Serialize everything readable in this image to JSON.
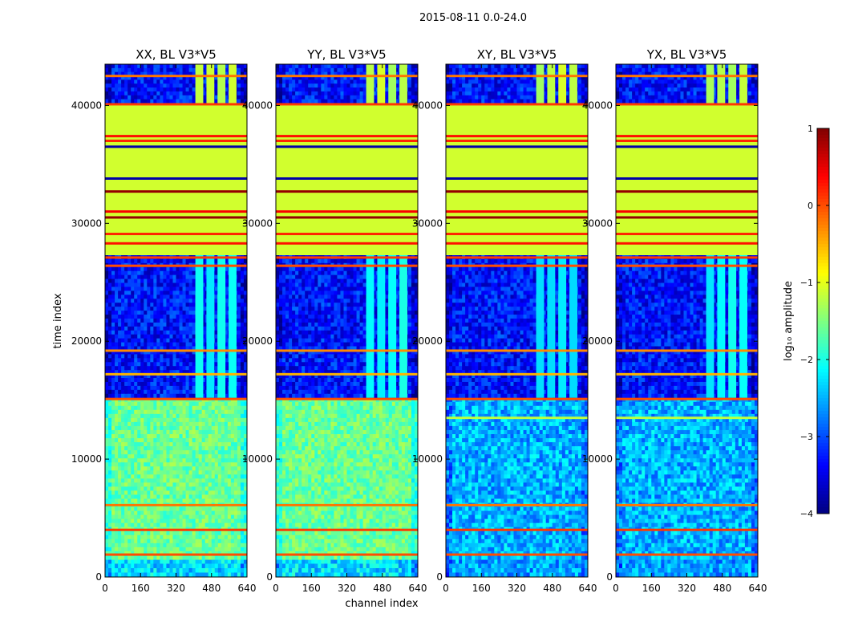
{
  "figure_title": "2015-08-11 0.0-24.0",
  "chart_data": {
    "type": "heatmap",
    "title": "2015-08-11 0.0-24.0",
    "xlabel": "channel index",
    "ylabel": "time index",
    "xlim": [
      0,
      640
    ],
    "ylim": [
      0,
      43500
    ],
    "x_ticks": [
      0,
      160,
      320,
      480,
      640
    ],
    "y_ticks": [
      0,
      10000,
      20000,
      30000,
      40000
    ],
    "colorbar": {
      "label": "log₁₀ amplitude",
      "range": [
        -4,
        1
      ],
      "ticks": [
        1,
        0,
        -1,
        -2,
        -3,
        -4
      ],
      "tick_labels": [
        "1",
        "0",
        "−1",
        "−2",
        "−3",
        "−4"
      ],
      "colormap": "jet"
    },
    "panels": [
      {
        "title": "XX, BL V3*V5",
        "kind": "parallel",
        "bands": [
          {
            "from": 0,
            "to": 1500,
            "level": -2.3,
            "noise": 0.45
          },
          {
            "from": 1500,
            "to": 15200,
            "level": -1.6,
            "noise": 0.35
          },
          {
            "from": 15200,
            "to": 27300,
            "level": -3.3,
            "noise": 0.45
          },
          {
            "from": 27300,
            "to": 40200,
            "level": -1.1,
            "noise": 0
          },
          {
            "from": 40200,
            "to": 43500,
            "level": -3.3,
            "noise": 0.45
          }
        ],
        "rfi_blocks": [
          {
            "x0": 400,
            "x1": 600,
            "y0": 19800,
            "y1": 24000,
            "level": -1.4
          },
          {
            "x0": 400,
            "x1": 600,
            "y0": 15200,
            "y1": 27300,
            "level": -2.1
          },
          {
            "x0": 400,
            "x1": 600,
            "y0": 40200,
            "y1": 43500,
            "level": -1.2
          }
        ],
        "lines": [
          {
            "t": 1900,
            "level": 0.0
          },
          {
            "t": 4000,
            "level": 0.1
          },
          {
            "t": 6100,
            "level": -0.2
          },
          {
            "t": 15100,
            "level": 0.0
          },
          {
            "t": 17200,
            "level": -0.5
          },
          {
            "t": 19200,
            "level": -0.3
          },
          {
            "t": 26400,
            "level": 0.0
          },
          {
            "t": 27100,
            "level": 0.1
          },
          {
            "t": 28300,
            "level": 0.3
          },
          {
            "t": 29100,
            "level": 0.2
          },
          {
            "t": 30500,
            "level": 0.9
          },
          {
            "t": 31000,
            "level": 0.4
          },
          {
            "t": 32700,
            "level": 0.9
          },
          {
            "t": 33800,
            "level": -3.8
          },
          {
            "t": 36500,
            "level": -3.8
          },
          {
            "t": 37000,
            "level": 0.2
          },
          {
            "t": 37400,
            "level": 0.3
          },
          {
            "t": 40100,
            "level": 0.1
          },
          {
            "t": 42500,
            "level": -0.2
          }
        ]
      },
      {
        "title": "YY, BL V3*V5",
        "kind": "parallel",
        "bands": [
          {
            "from": 0,
            "to": 1500,
            "level": -2.3,
            "noise": 0.45
          },
          {
            "from": 1500,
            "to": 15200,
            "level": -1.6,
            "noise": 0.35
          },
          {
            "from": 15200,
            "to": 27300,
            "level": -3.3,
            "noise": 0.45
          },
          {
            "from": 27300,
            "to": 40200,
            "level": -1.1,
            "noise": 0
          },
          {
            "from": 40200,
            "to": 43500,
            "level": -3.3,
            "noise": 0.45
          }
        ],
        "rfi_blocks": [
          {
            "x0": 400,
            "x1": 600,
            "y0": 19800,
            "y1": 24000,
            "level": -1.5
          },
          {
            "x0": 400,
            "x1": 600,
            "y0": 15200,
            "y1": 27300,
            "level": -2.1
          },
          {
            "x0": 400,
            "x1": 600,
            "y0": 40200,
            "y1": 43500,
            "level": -1.2
          }
        ],
        "lines": [
          {
            "t": 1900,
            "level": 0.0
          },
          {
            "t": 4000,
            "level": 0.1
          },
          {
            "t": 6100,
            "level": -0.2
          },
          {
            "t": 15100,
            "level": 0.0
          },
          {
            "t": 17200,
            "level": -0.5
          },
          {
            "t": 19200,
            "level": -0.3
          },
          {
            "t": 26400,
            "level": 0.0
          },
          {
            "t": 27100,
            "level": 0.1
          },
          {
            "t": 28300,
            "level": 0.3
          },
          {
            "t": 29100,
            "level": 0.2
          },
          {
            "t": 30500,
            "level": 0.9
          },
          {
            "t": 31000,
            "level": 0.4
          },
          {
            "t": 32700,
            "level": 0.9
          },
          {
            "t": 33800,
            "level": -3.8
          },
          {
            "t": 36500,
            "level": -3.8
          },
          {
            "t": 37000,
            "level": 0.2
          },
          {
            "t": 37400,
            "level": 0.3
          },
          {
            "t": 40100,
            "level": 0.1
          },
          {
            "t": 42500,
            "level": -0.2
          }
        ]
      },
      {
        "title": "XY, BL V3*V5",
        "kind": "cross",
        "bands": [
          {
            "from": 0,
            "to": 1500,
            "level": -2.6,
            "noise": 0.45
          },
          {
            "from": 1500,
            "to": 15200,
            "level": -2.5,
            "noise": 0.45
          },
          {
            "from": 15200,
            "to": 27300,
            "level": -3.3,
            "noise": 0.45
          },
          {
            "from": 27300,
            "to": 40200,
            "level": -1.1,
            "noise": 0
          },
          {
            "from": 40200,
            "to": 43500,
            "level": -3.3,
            "noise": 0.45
          }
        ],
        "rfi_blocks": [
          {
            "x0": 400,
            "x1": 600,
            "y0": 19800,
            "y1": 24000,
            "level": -1.5
          },
          {
            "x0": 400,
            "x1": 600,
            "y0": 15200,
            "y1": 27300,
            "level": -2.2
          },
          {
            "x0": 400,
            "x1": 600,
            "y0": 40200,
            "y1": 43500,
            "level": -1.2
          }
        ],
        "lines": [
          {
            "t": 1900,
            "level": 0.0
          },
          {
            "t": 4000,
            "level": 0.1
          },
          {
            "t": 6100,
            "level": -0.2
          },
          {
            "t": 13500,
            "level": -1.2
          },
          {
            "t": 15100,
            "level": 0.0
          },
          {
            "t": 17200,
            "level": -0.5
          },
          {
            "t": 19200,
            "level": -0.3
          },
          {
            "t": 26400,
            "level": 0.0
          },
          {
            "t": 27100,
            "level": 0.1
          },
          {
            "t": 28300,
            "level": 0.3
          },
          {
            "t": 29100,
            "level": 0.2
          },
          {
            "t": 30500,
            "level": 0.9
          },
          {
            "t": 31000,
            "level": 0.4
          },
          {
            "t": 32700,
            "level": 0.9
          },
          {
            "t": 33800,
            "level": -3.8
          },
          {
            "t": 36500,
            "level": -3.8
          },
          {
            "t": 37000,
            "level": 0.2
          },
          {
            "t": 37400,
            "level": 0.3
          },
          {
            "t": 40100,
            "level": 0.1
          },
          {
            "t": 42500,
            "level": -0.2
          }
        ]
      },
      {
        "title": "YX, BL V3*V5",
        "kind": "cross",
        "bands": [
          {
            "from": 0,
            "to": 1500,
            "level": -2.6,
            "noise": 0.45
          },
          {
            "from": 1500,
            "to": 15200,
            "level": -2.5,
            "noise": 0.45
          },
          {
            "from": 15200,
            "to": 27300,
            "level": -3.3,
            "noise": 0.45
          },
          {
            "from": 27300,
            "to": 40200,
            "level": -1.1,
            "noise": 0
          },
          {
            "from": 40200,
            "to": 43500,
            "level": -3.3,
            "noise": 0.45
          }
        ],
        "rfi_blocks": [
          {
            "x0": 400,
            "x1": 600,
            "y0": 19800,
            "y1": 24000,
            "level": -1.5
          },
          {
            "x0": 400,
            "x1": 600,
            "y0": 15200,
            "y1": 27300,
            "level": -2.2
          },
          {
            "x0": 400,
            "x1": 600,
            "y0": 40200,
            "y1": 43500,
            "level": -1.2
          }
        ],
        "lines": [
          {
            "t": 1900,
            "level": 0.0
          },
          {
            "t": 4000,
            "level": 0.1
          },
          {
            "t": 6100,
            "level": -0.2
          },
          {
            "t": 13500,
            "level": -1.2
          },
          {
            "t": 15100,
            "level": 0.0
          },
          {
            "t": 17200,
            "level": -0.5
          },
          {
            "t": 19200,
            "level": -0.3
          },
          {
            "t": 26400,
            "level": 0.0
          },
          {
            "t": 27100,
            "level": 0.1
          },
          {
            "t": 28300,
            "level": 0.3
          },
          {
            "t": 29100,
            "level": 0.2
          },
          {
            "t": 30500,
            "level": 0.9
          },
          {
            "t": 31000,
            "level": 0.4
          },
          {
            "t": 32700,
            "level": 0.9
          },
          {
            "t": 33800,
            "level": -3.8
          },
          {
            "t": 36500,
            "level": -3.8
          },
          {
            "t": 37000,
            "level": 0.2
          },
          {
            "t": 37400,
            "level": 0.3
          },
          {
            "t": 40100,
            "level": 0.1
          },
          {
            "t": 42500,
            "level": -0.2
          }
        ]
      }
    ]
  }
}
